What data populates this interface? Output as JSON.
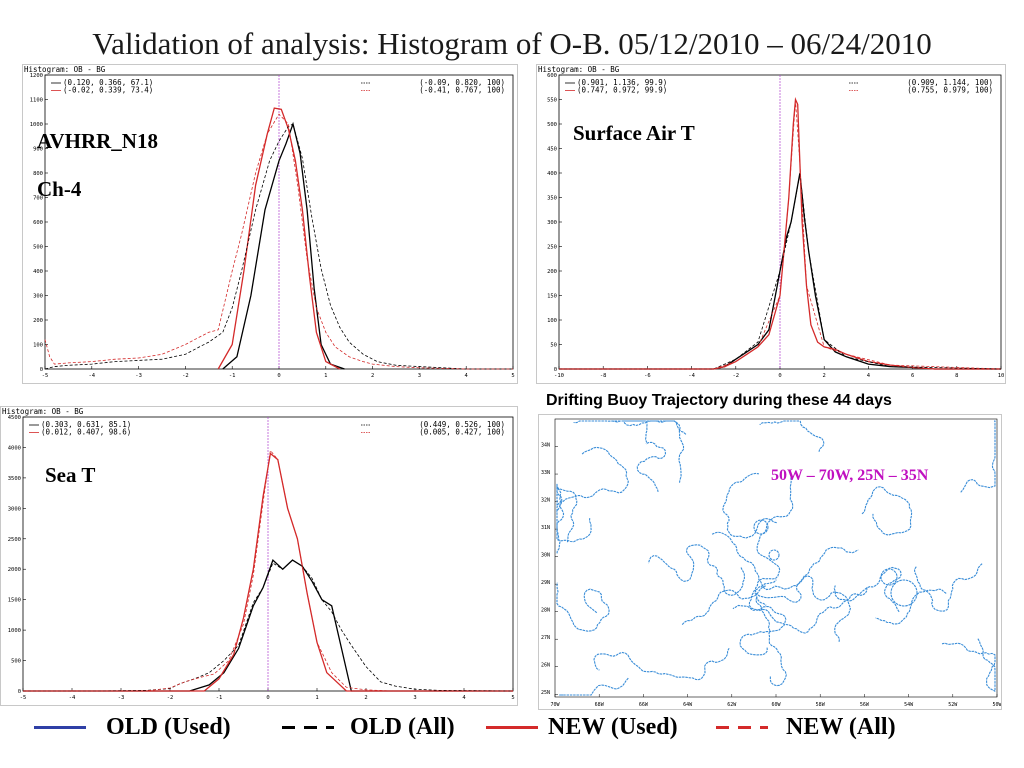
{
  "title": "Validation of analysis: Histogram of O-B. 05/12/2010 – 06/24/2010",
  "legend": {
    "items": [
      {
        "label": "OLD (Used)",
        "color": "#2f3fa6",
        "style": "solid"
      },
      {
        "label": "OLD (All)",
        "color": "#000000",
        "style": "dashed"
      },
      {
        "label": "NEW (Used)",
        "color": "#d42a2a",
        "style": "solid"
      },
      {
        "label": "NEW (All)",
        "color": "#d42a2a",
        "style": "dashed"
      }
    ]
  },
  "map": {
    "title": "Drifting Buoy Trajectory during these 44 days",
    "region_label": "50W – 70W, 25N – 35N",
    "region_color": "#c010c0",
    "line_color": "#3b8ed8",
    "lat_labels": [
      "34N",
      "33N",
      "32N",
      "31N",
      "30N",
      "29N",
      "28N",
      "27N",
      "26N",
      "25N"
    ],
    "lon_labels": [
      "70W",
      "68W",
      "66W",
      "64W",
      "62W",
      "60W",
      "58W",
      "56W",
      "54W",
      "52W",
      "50W"
    ]
  },
  "chart_data": [
    {
      "type": "line",
      "header": "Histogram: OB - BG",
      "annotation": [
        "AVHRR_N18",
        "Ch-4"
      ],
      "stats_left": [
        "(0.120,   0.366,  67.1)",
        "(-0.02,  0.339,  73.4)"
      ],
      "stats_right": [
        "(-0.09,  0.820,   100)",
        "(-0.41,  0.767,   100)"
      ],
      "xlim": [
        -5,
        5
      ],
      "ylim": [
        0,
        1200
      ],
      "xticks": [
        -5,
        -4,
        -3,
        -2,
        -1,
        0,
        1,
        2,
        3,
        4,
        5
      ],
      "yticks": [
        0,
        100,
        200,
        300,
        400,
        500,
        600,
        700,
        800,
        900,
        1000,
        1100,
        1200
      ],
      "series": [
        {
          "stats": "(0.120,   0.366,  67.1)",
          "color": "#000000",
          "dash": "",
          "x": [
            -1.2,
            -0.9,
            -0.6,
            -0.3,
            0,
            0.15,
            0.3,
            0.45,
            0.6,
            0.75,
            0.9,
            1.1,
            1.4
          ],
          "y": [
            0,
            50,
            300,
            650,
            850,
            920,
            1000,
            880,
            650,
            330,
            100,
            20,
            0
          ]
        },
        {
          "stats": "(-0.02,  0.339,  73.4)",
          "color": "#d42a2a",
          "dash": "",
          "x": [
            -1.3,
            -1.0,
            -0.75,
            -0.5,
            -0.25,
            -0.1,
            0.05,
            0.2,
            0.35,
            0.5,
            0.65,
            0.8,
            1.0,
            1.3
          ],
          "y": [
            0,
            100,
            400,
            750,
            960,
            1065,
            1060,
            980,
            850,
            650,
            380,
            150,
            30,
            0
          ]
        },
        {
          "stats": "(-0.09,  0.820,   100)",
          "color": "#000000",
          "dash": "3,2",
          "x": [
            -5,
            -4.8,
            -4.5,
            -4,
            -3.5,
            -3,
            -2.5,
            -2,
            -1.7,
            -1.5,
            -1.2,
            -1.0,
            -0.8,
            -0.5,
            -0.2,
            0,
            0.2,
            0.3,
            0.5,
            0.7,
            0.9,
            1.1,
            1.3,
            1.5,
            1.8,
            2.1,
            2.5,
            3,
            3.5,
            4,
            5
          ],
          "y": [
            0,
            10,
            15,
            20,
            30,
            35,
            40,
            60,
            90,
            110,
            150,
            250,
            400,
            650,
            850,
            930,
            990,
            1000,
            860,
            620,
            410,
            260,
            170,
            110,
            60,
            30,
            15,
            10,
            5,
            0,
            0
          ]
        },
        {
          "stats": "(-0.41,  0.767,   100)",
          "color": "#d42a2a",
          "dash": "3,2",
          "x": [
            -5,
            -4.9,
            -4.8,
            -4.5,
            -4,
            -3.5,
            -3,
            -2.5,
            -2.0,
            -1.7,
            -1.5,
            -1.3,
            -1.0,
            -0.8,
            -0.5,
            -0.25,
            0,
            0.2,
            0.4,
            0.6,
            0.8,
            1.0,
            1.2,
            1.5,
            1.8,
            2.0,
            2.5,
            3,
            4,
            5
          ],
          "y": [
            120,
            50,
            20,
            25,
            30,
            40,
            45,
            60,
            100,
            130,
            150,
            160,
            400,
            550,
            800,
            960,
            1040,
            1000,
            750,
            450,
            250,
            150,
            90,
            50,
            30,
            20,
            10,
            5,
            0,
            0
          ]
        }
      ]
    },
    {
      "type": "line",
      "header": "Histogram: OB - BG",
      "annotation": [
        "Surface Air T"
      ],
      "stats_left": [
        "(0.901, 1.136, 99.9)",
        "(0.747, 0.972, 99.9)"
      ],
      "stats_right": [
        "(0.909, 1.144, 100)",
        "(0.755, 0.979, 100)"
      ],
      "xlim": [
        -10,
        10
      ],
      "ylim": [
        0,
        600
      ],
      "xticks": [
        -10,
        -8,
        -6,
        -4,
        -2,
        0,
        2,
        4,
        6,
        8,
        10
      ],
      "yticks": [
        0,
        50,
        100,
        150,
        200,
        250,
        300,
        350,
        400,
        450,
        500,
        550,
        600
      ],
      "series": [
        {
          "stats": "(0.901, 1.136, 99.9)",
          "color": "#000000",
          "dash": "",
          "x": [
            -10,
            -3,
            -2.5,
            -2,
            -1.5,
            -1,
            -0.5,
            0,
            0.3,
            0.5,
            0.7,
            0.9,
            1.1,
            1.3,
            1.6,
            2,
            2.5,
            3,
            4,
            5,
            6,
            7,
            10
          ],
          "y": [
            0,
            0,
            5,
            20,
            35,
            50,
            80,
            200,
            270,
            300,
            350,
            400,
            310,
            240,
            150,
            60,
            35,
            25,
            10,
            5,
            3,
            0,
            0
          ]
        },
        {
          "stats": "(0.747, 0.972, 99.9)",
          "color": "#d42a2a",
          "dash": "",
          "x": [
            -10,
            -3,
            -2.5,
            -2,
            -1.5,
            -1,
            -0.5,
            0,
            0.2,
            0.4,
            0.6,
            0.7,
            0.8,
            0.9,
            1.0,
            1.2,
            1.4,
            1.7,
            2,
            2.5,
            3,
            4,
            5,
            6,
            7,
            10
          ],
          "y": [
            0,
            0,
            5,
            15,
            30,
            45,
            70,
            150,
            250,
            350,
            500,
            550,
            540,
            420,
            300,
            170,
            90,
            55,
            45,
            40,
            30,
            15,
            8,
            3,
            0,
            0
          ]
        },
        {
          "stats": "(0.909, 1.144, 100)",
          "color": "#000000",
          "dash": "3,2",
          "x": [
            -10,
            -3,
            -2,
            -1,
            0,
            0.5,
            0.9,
            1.3,
            2,
            3,
            5,
            10
          ],
          "y": [
            0,
            0,
            20,
            55,
            200,
            300,
            398,
            240,
            60,
            25,
            5,
            0
          ]
        },
        {
          "stats": "(0.755, 0.979, 100)",
          "color": "#d42a2a",
          "dash": "3,2",
          "x": [
            -10,
            -3,
            -2,
            -1,
            0,
            0.4,
            0.7,
            0.9,
            1.2,
            2,
            3,
            5,
            10
          ],
          "y": [
            0,
            0,
            15,
            45,
            150,
            350,
            548,
            420,
            170,
            45,
            30,
            8,
            0
          ]
        }
      ]
    },
    {
      "type": "line",
      "header": "Histogram: OB - BG",
      "annotation": [
        "Sea T"
      ],
      "stats_left": [
        "(0.303, 0.631, 85.1)",
        "(0.012, 0.407, 98.6)"
      ],
      "stats_right": [
        "(0.449, 0.526, 100)",
        "(0.005, 0.427, 100)"
      ],
      "xlim": [
        -5,
        5
      ],
      "ylim": [
        0,
        4500
      ],
      "xticks": [
        -5,
        -4,
        -3,
        -2,
        -1,
        0,
        1,
        2,
        3,
        4,
        5
      ],
      "yticks": [
        0,
        500,
        1000,
        1500,
        2000,
        2500,
        3000,
        3500,
        4000,
        4500
      ],
      "series": [
        {
          "stats": "(0.303, 0.631, 85.1)",
          "color": "#000000",
          "dash": "",
          "x": [
            -5,
            -1.6,
            -1.2,
            -0.9,
            -0.6,
            -0.3,
            -0.1,
            0.1,
            0.3,
            0.5,
            0.7,
            0.9,
            1.1,
            1.3,
            1.5,
            1.7,
            5
          ],
          "y": [
            0,
            0,
            100,
            300,
            700,
            1400,
            1700,
            2150,
            2000,
            2150,
            2050,
            1800,
            1500,
            1400,
            700,
            0,
            0
          ]
        },
        {
          "stats": "(0.012, 0.407, 98.6)",
          "color": "#d42a2a",
          "dash": "",
          "x": [
            -5,
            -1.3,
            -1.0,
            -0.7,
            -0.5,
            -0.3,
            -0.1,
            0.05,
            0.2,
            0.4,
            0.6,
            0.8,
            1.0,
            1.2,
            1.6,
            5
          ],
          "y": [
            0,
            0,
            200,
            600,
            1200,
            2000,
            3200,
            3900,
            3800,
            3000,
            2500,
            1600,
            800,
            300,
            0,
            0
          ]
        },
        {
          "stats": "(0.449, 0.526, 100)",
          "color": "#000000",
          "dash": "3,2",
          "x": [
            -5,
            -3.5,
            -2.5,
            -2,
            -1.8,
            -1.5,
            -1.2,
            -0.9,
            -0.6,
            -0.3,
            -0.1,
            0.1,
            0.3,
            0.5,
            0.7,
            0.9,
            1.1,
            1.3,
            1.5,
            1.7,
            2,
            2.3,
            2.6,
            3,
            3.5,
            5
          ],
          "y": [
            0,
            0,
            10,
            40,
            120,
            200,
            300,
            500,
            750,
            1450,
            1700,
            2100,
            2000,
            2150,
            2050,
            1850,
            1500,
            1300,
            1000,
            750,
            400,
            150,
            80,
            30,
            10,
            0
          ]
        },
        {
          "stats": "(0.005, 0.427, 100)",
          "color": "#d42a2a",
          "dash": "3,2",
          "x": [
            -5,
            -2.5,
            -2,
            -1.7,
            -1.4,
            -1.1,
            -0.8,
            -0.5,
            -0.3,
            -0.1,
            0.05,
            0.2,
            0.4,
            0.6,
            0.8,
            1.0,
            1.3,
            1.6,
            2,
            2.5,
            5
          ],
          "y": [
            0,
            0,
            50,
            150,
            220,
            280,
            500,
            1100,
            1900,
            3100,
            3950,
            3800,
            3000,
            2500,
            1600,
            800,
            300,
            60,
            20,
            0,
            0
          ]
        }
      ]
    }
  ]
}
